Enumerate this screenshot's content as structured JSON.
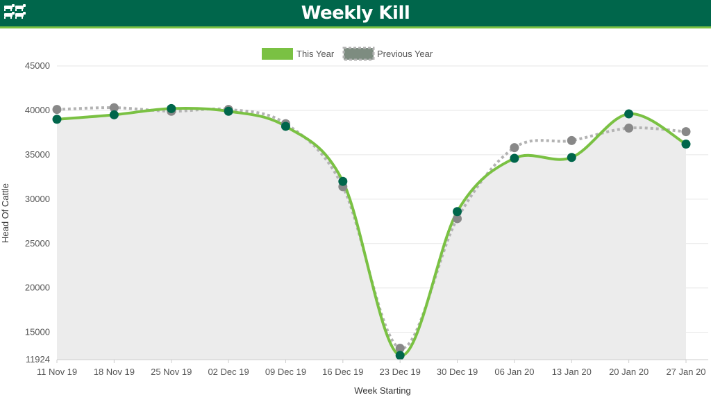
{
  "header": {
    "title": "Weekly Kill",
    "logo_icon": "cattle-icon"
  },
  "colors": {
    "header_bg": "#00664b",
    "accent": "#7ac143",
    "this_year_line": "#7ac143",
    "this_year_marker": "#00664b",
    "previous_year_line": "#b3b3b3",
    "previous_year_marker": "#888888",
    "area_fill": "#ececec"
  },
  "chart_data": {
    "type": "line",
    "title": "",
    "xlabel": "Week Starting",
    "ylabel": "Head Of Cattle",
    "categories": [
      "11 Nov 19",
      "18 Nov 19",
      "25 Nov 19",
      "02 Dec 19",
      "09 Dec 19",
      "16 Dec 19",
      "23 Dec 19",
      "30 Dec 19",
      "06 Jan 20",
      "13 Jan 20",
      "20 Jan 20",
      "27 Jan 20"
    ],
    "ylim": [
      11924,
      45000
    ],
    "yticks": [
      11924,
      15000,
      20000,
      25000,
      30000,
      35000,
      40000,
      45000
    ],
    "grid": true,
    "legend_position": "top-center",
    "series": [
      {
        "name": "This Year",
        "style": "solid",
        "values": [
          39000,
          39500,
          40200,
          39900,
          38200,
          32000,
          12400,
          28600,
          34600,
          34700,
          39600,
          36200
        ]
      },
      {
        "name": "Previous Year",
        "style": "dotted",
        "values": [
          40100,
          40300,
          39900,
          40100,
          38500,
          31400,
          13200,
          27800,
          35800,
          36600,
          38000,
          37600
        ]
      }
    ]
  }
}
